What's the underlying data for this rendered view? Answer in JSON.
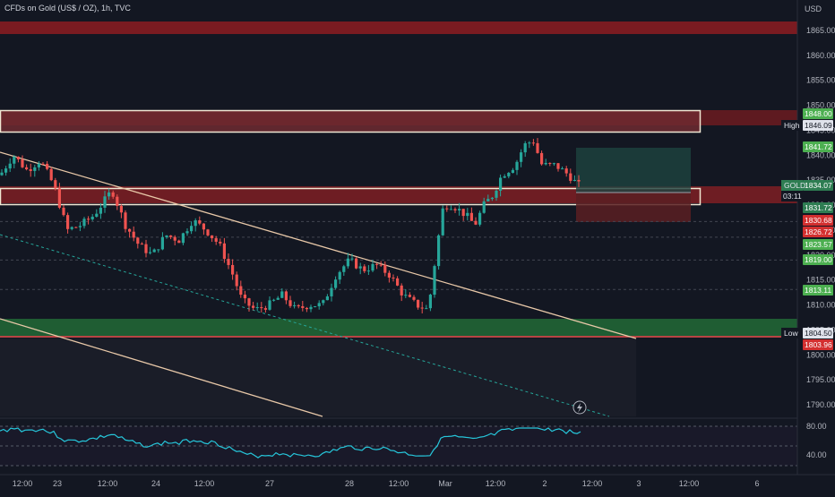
{
  "header": {
    "symbol_title": "CFDs on Gold (US$ / OZ), 1h, TVC",
    "currency": "USD"
  },
  "colors": {
    "background": "#131722",
    "bull": "#26a69a",
    "bear": "#ef5350",
    "supply_zone": "#7a1b21",
    "demand_zone": "#1f5d33",
    "channel": "#e8c8a8",
    "rsi": "#26c6da"
  },
  "price_axis": {
    "ticks": [
      "1865.00",
      "1860.00",
      "1855.00",
      "1850.00",
      "1845.00",
      "1840.00",
      "1835.00",
      "1830.00",
      "1825.00",
      "1820.00",
      "1815.00",
      "1810.00",
      "1805.00",
      "1800.00",
      "1795.00",
      "1790.00"
    ]
  },
  "price_tags": [
    {
      "text": "1848.00",
      "kind": "green"
    },
    {
      "text": "1846.09",
      "kind": "white",
      "label": "High"
    },
    {
      "text": "1841.72",
      "kind": "green"
    },
    {
      "text": "1834.07",
      "kind": "green-dark",
      "label": "GOLD",
      "sub": "03:11"
    },
    {
      "text": "1831.72",
      "kind": "green-dark"
    },
    {
      "text": "1830.68",
      "kind": "red"
    },
    {
      "text": "1826.72",
      "kind": "red"
    },
    {
      "text": "1823.57",
      "kind": "green"
    },
    {
      "text": "1819.00",
      "kind": "green"
    },
    {
      "text": "1813.11",
      "kind": "green"
    },
    {
      "text": "1804.50",
      "kind": "white",
      "label": "Low"
    },
    {
      "text": "1803.96",
      "kind": "red"
    }
  ],
  "time_axis": {
    "labels": [
      "12:00",
      "23",
      "12:00",
      "24",
      "12:00",
      "27",
      "28",
      "12:00",
      "Mar",
      "12:00",
      "2",
      "12:00",
      "3",
      "12:00",
      "6"
    ]
  },
  "rsi_axis": {
    "ticks": [
      "80.00",
      "40.00"
    ]
  },
  "icons": {
    "replay": "lightning-icon"
  }
}
